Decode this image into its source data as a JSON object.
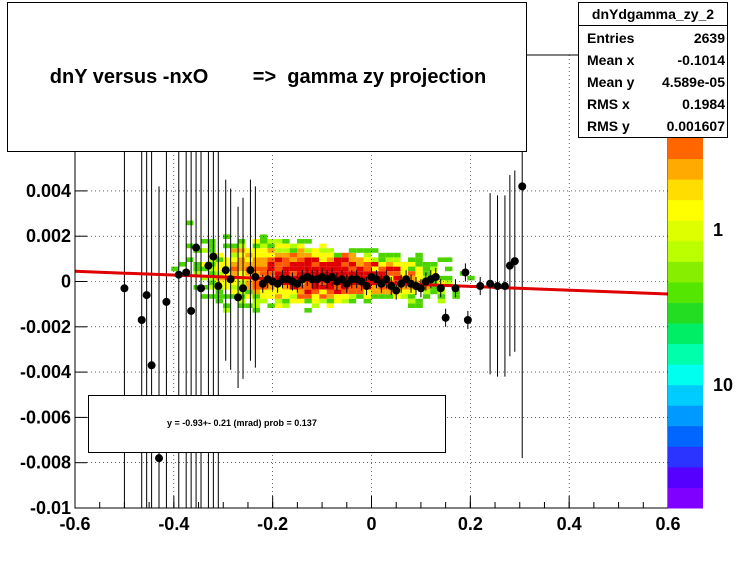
{
  "title": "dnY versus -nxO        =>  gamma zy projection",
  "stats": {
    "name": "dnYdgamma_zy_2",
    "rows": [
      {
        "key": "Entries",
        "value": "2639"
      },
      {
        "key": "Mean x",
        "value": "-0.1014"
      },
      {
        "key": "Mean y",
        "value": "4.589e-05"
      },
      {
        "key": "RMS x",
        "value": "0.1984"
      },
      {
        "key": "RMS y",
        "value": "0.001607"
      }
    ]
  },
  "fit_label": "y =   -0.93+- 0.21 (mrad) prob = 0.137",
  "colors": {
    "fit_line": "#e00000",
    "profile": "#000000"
  },
  "chart_data": {
    "type": "scatter",
    "subtype": "2D histogram (colz) with profile points and linear fit",
    "title": "dnY versus -nxO        =>  gamma zy projection",
    "xlim": [
      -0.6,
      0.6
    ],
    "ylim": [
      -0.01,
      0.01
    ],
    "x_ticks": [
      "-0.6",
      "-0.4",
      "-0.2",
      "0",
      "0.2",
      "0.4",
      "0.6"
    ],
    "y_ticks": [
      "-0.01",
      "-0.008",
      "-0.006",
      "-0.004",
      "-0.002",
      "0",
      "0.002",
      "0.004"
    ],
    "z_ticks": [
      "1",
      "10"
    ],
    "grid": true,
    "fit_line": [
      [
        -0.6,
        0.00045
      ],
      [
        0.6,
        -0.00055
      ]
    ],
    "profile_points": [
      {
        "x": -0.5,
        "y": -0.0003
      },
      {
        "x": -0.465,
        "y": -0.0017
      },
      {
        "x": -0.455,
        "y": -0.0006
      },
      {
        "x": -0.445,
        "y": -0.0037
      },
      {
        "x": -0.43,
        "y": -0.0078
      },
      {
        "x": -0.415,
        "y": -0.0009
      },
      {
        "x": -0.39,
        "y": 0.0003
      },
      {
        "x": -0.375,
        "y": 0.0004
      },
      {
        "x": -0.365,
        "y": -0.0013
      },
      {
        "x": -0.355,
        "y": 0.0015
      },
      {
        "x": -0.345,
        "y": -0.0003
      },
      {
        "x": -0.33,
        "y": 0.0007
      },
      {
        "x": -0.32,
        "y": 0.0011
      },
      {
        "x": -0.31,
        "y": -0.0002
      },
      {
        "x": -0.295,
        "y": 0.0005
      },
      {
        "x": -0.285,
        "y": 0.0001
      },
      {
        "x": -0.27,
        "y": -0.0007
      },
      {
        "x": -0.26,
        "y": -0.0003
      },
      {
        "x": -0.245,
        "y": 0.0005
      },
      {
        "x": -0.235,
        "y": 0.0002
      },
      {
        "x": -0.22,
        "y": -0.0001
      },
      {
        "x": -0.21,
        "y": 0.0001
      },
      {
        "x": -0.2,
        "y": 0.0
      },
      {
        "x": -0.19,
        "y": -0.0001
      },
      {
        "x": -0.18,
        "y": 0.0001
      },
      {
        "x": -0.17,
        "y": 0.0001
      },
      {
        "x": -0.16,
        "y": 0.0
      },
      {
        "x": -0.15,
        "y": -0.0001
      },
      {
        "x": -0.14,
        "y": 0.0001
      },
      {
        "x": -0.13,
        "y": 0.0002
      },
      {
        "x": -0.12,
        "y": 0.0001
      },
      {
        "x": -0.11,
        "y": 0.0001
      },
      {
        "x": -0.1,
        "y": 0.0002
      },
      {
        "x": -0.09,
        "y": 0.0001
      },
      {
        "x": -0.08,
        "y": 0.0002
      },
      {
        "x": -0.07,
        "y": 0.0
      },
      {
        "x": -0.06,
        "y": 0.0001
      },
      {
        "x": -0.05,
        "y": -0.0001
      },
      {
        "x": -0.04,
        "y": 0.0001
      },
      {
        "x": -0.03,
        "y": 0.0001
      },
      {
        "x": -0.02,
        "y": 0.0
      },
      {
        "x": -0.01,
        "y": -0.0002
      },
      {
        "x": 0.0,
        "y": 0.0002
      },
      {
        "x": 0.01,
        "y": 0.0001
      },
      {
        "x": 0.02,
        "y": -0.0001
      },
      {
        "x": 0.03,
        "y": 0.0001
      },
      {
        "x": 0.04,
        "y": -0.0002
      },
      {
        "x": 0.05,
        "y": -0.0004
      },
      {
        "x": 0.06,
        "y": -0.0001
      },
      {
        "x": 0.07,
        "y": 0.0001
      },
      {
        "x": 0.08,
        "y": -0.0001
      },
      {
        "x": 0.09,
        "y": -0.0002
      },
      {
        "x": 0.1,
        "y": -0.0003
      },
      {
        "x": 0.11,
        "y": 0.0
      },
      {
        "x": 0.12,
        "y": 0.0001
      },
      {
        "x": 0.13,
        "y": 0.0002
      },
      {
        "x": 0.14,
        "y": -0.0003
      },
      {
        "x": 0.15,
        "y": -0.0016
      },
      {
        "x": 0.17,
        "y": -0.0003
      },
      {
        "x": 0.19,
        "y": 0.0004
      },
      {
        "x": 0.195,
        "y": -0.0017
      },
      {
        "x": 0.22,
        "y": -0.0002
      },
      {
        "x": 0.24,
        "y": -0.0001
      },
      {
        "x": 0.255,
        "y": -0.0002
      },
      {
        "x": 0.27,
        "y": -0.0002
      },
      {
        "x": 0.28,
        "y": 0.0007
      },
      {
        "x": 0.29,
        "y": 0.0009
      },
      {
        "x": 0.305,
        "y": 0.0042
      }
    ]
  }
}
